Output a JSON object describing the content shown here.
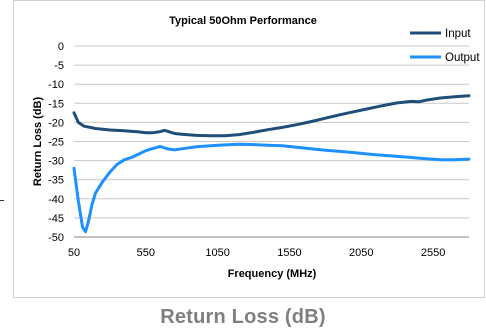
{
  "caption": "Return Loss (dB)",
  "chart_data": {
    "type": "line",
    "title": "Typical 50Ohm Performance",
    "xlabel": "Frequency (MHz)",
    "ylabel": "Return Loss (dB)",
    "xlim": [
      50,
      2800
    ],
    "ylim": [
      -50,
      0
    ],
    "xticks": [
      50,
      550,
      1050,
      1550,
      2050,
      2550
    ],
    "yticks": [
      0,
      -5,
      -10,
      -15,
      -20,
      -25,
      -30,
      -35,
      -40,
      -45,
      -50
    ],
    "grid": "horizontal",
    "legend_position": "right",
    "series": [
      {
        "name": "Input",
        "color": "#1f4e79",
        "x": [
          50,
          80,
          120,
          200,
          300,
          400,
          500,
          550,
          600,
          650,
          680,
          700,
          750,
          800,
          900,
          1000,
          1050,
          1100,
          1200,
          1300,
          1400,
          1500,
          1600,
          1700,
          1800,
          1900,
          2000,
          2100,
          2200,
          2300,
          2400,
          2450,
          2500,
          2600,
          2700,
          2800
        ],
        "values": [
          -17.5,
          -20.0,
          -21.0,
          -21.6,
          -22.0,
          -22.2,
          -22.5,
          -22.7,
          -22.7,
          -22.4,
          -22.1,
          -22.3,
          -22.9,
          -23.1,
          -23.4,
          -23.5,
          -23.5,
          -23.5,
          -23.2,
          -22.6,
          -21.9,
          -21.3,
          -20.6,
          -19.8,
          -18.9,
          -18.0,
          -17.2,
          -16.4,
          -15.6,
          -14.9,
          -14.5,
          -14.6,
          -14.2,
          -13.6,
          -13.3,
          -13.0
        ]
      },
      {
        "name": "Output",
        "color": "#1e90ff",
        "x": [
          50,
          80,
          110,
          130,
          150,
          175,
          200,
          250,
          300,
          350,
          400,
          450,
          500,
          550,
          600,
          650,
          700,
          750,
          800,
          900,
          1000,
          1100,
          1200,
          1300,
          1400,
          1500,
          1600,
          1700,
          1800,
          1900,
          2000,
          2100,
          2200,
          2300,
          2400,
          2500,
          2600,
          2700,
          2800
        ],
        "values": [
          -32.0,
          -40.5,
          -47.5,
          -48.6,
          -46.0,
          -41.5,
          -38.5,
          -35.5,
          -33.0,
          -31.0,
          -29.8,
          -29.2,
          -28.3,
          -27.4,
          -26.8,
          -26.3,
          -26.9,
          -27.2,
          -26.9,
          -26.4,
          -26.1,
          -25.9,
          -25.7,
          -25.8,
          -26.0,
          -26.1,
          -26.5,
          -26.9,
          -27.3,
          -27.6,
          -27.9,
          -28.3,
          -28.6,
          -28.9,
          -29.2,
          -29.5,
          -29.8,
          -29.8,
          -29.6
        ]
      }
    ]
  }
}
